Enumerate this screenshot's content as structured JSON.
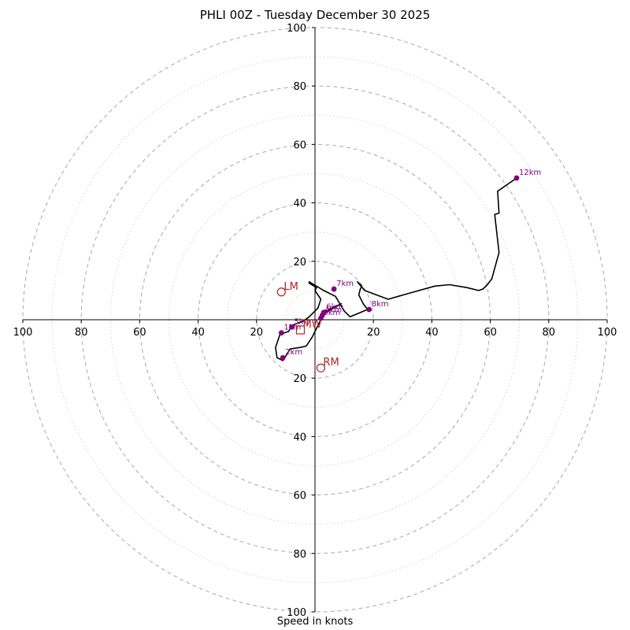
{
  "chart_data": {
    "type": "hodograph",
    "title": "PHLI 00Z - Tuesday December 30 2025",
    "xlabel": "Speed in knots",
    "range": [
      -100,
      100
    ],
    "ring_ticks": [
      20,
      40,
      60,
      80,
      100
    ],
    "axis_tick_labels": {
      "x_left": [
        "100",
        "80",
        "60",
        "40",
        "20"
      ],
      "x_right": [
        "20",
        "40",
        "60",
        "80",
        "100"
      ],
      "y_top": [
        "100",
        "80",
        "60",
        "40",
        "20"
      ],
      "y_bottom": [
        "20",
        "40",
        "60",
        "80",
        "100"
      ]
    },
    "trace": [
      [
        2,
        2
      ],
      [
        9,
        5.5
      ],
      [
        3,
        2
      ],
      [
        1,
        -2
      ],
      [
        -1,
        -6
      ],
      [
        -3,
        -9
      ],
      [
        -5,
        -9.5
      ],
      [
        -8.5,
        -10
      ],
      [
        -11,
        -14
      ],
      [
        -13,
        -13
      ],
      [
        -13.5,
        -9.5
      ],
      [
        -12,
        -5
      ],
      [
        -9,
        -4
      ],
      [
        -8,
        -2
      ],
      [
        -4,
        -0.5
      ],
      [
        -2,
        1
      ],
      [
        1,
        4
      ],
      [
        2,
        7
      ],
      [
        0,
        10
      ],
      [
        0.5,
        11
      ],
      [
        -2,
        12.5
      ],
      [
        -2,
        13
      ],
      [
        3,
        10
      ],
      [
        7,
        8
      ],
      [
        10,
        3
      ],
      [
        12,
        1
      ],
      [
        18,
        3.5
      ],
      [
        16.5,
        5.5
      ],
      [
        15,
        8.5
      ],
      [
        15.5,
        10.5
      ],
      [
        16,
        11.5
      ],
      [
        14.5,
        13
      ],
      [
        17,
        10
      ],
      [
        25,
        7
      ],
      [
        32,
        9
      ],
      [
        41,
        11.5
      ],
      [
        46,
        12
      ],
      [
        52,
        11
      ],
      [
        56,
        10
      ],
      [
        57.5,
        10.5
      ],
      [
        59,
        12
      ],
      [
        60.5,
        14
      ],
      [
        63,
        23
      ],
      [
        61.5,
        36
      ],
      [
        63,
        36.5
      ],
      [
        62.5,
        44
      ],
      [
        69,
        48.5
      ]
    ],
    "height_markers": [
      {
        "label": "1km",
        "u": -11.5,
        "v": -4.5
      },
      {
        "label": "2km",
        "u": -11,
        "v": -13
      },
      {
        "label": "3km",
        "u": 2,
        "v": 0.5
      },
      {
        "label": "4km",
        "u": 2.5,
        "v": 1.5
      },
      {
        "label": "5km",
        "u": -8,
        "v": -2.5
      },
      {
        "label": "6km",
        "u": 3,
        "v": 2.5
      },
      {
        "label": "7km",
        "u": 6.5,
        "v": 10.5
      },
      {
        "label": "8km",
        "u": 18.5,
        "v": 3.5
      },
      {
        "label": "12km",
        "u": 69,
        "v": 48.5
      }
    ],
    "motion_markers": [
      {
        "label": "LM",
        "u": -11.5,
        "v": 9.5,
        "shape": "circle"
      },
      {
        "label": "RM",
        "u": 2,
        "v": -16.5,
        "shape": "circle"
      },
      {
        "label": "MW",
        "u": -5,
        "v": -3.5,
        "shape": "square"
      }
    ]
  }
}
